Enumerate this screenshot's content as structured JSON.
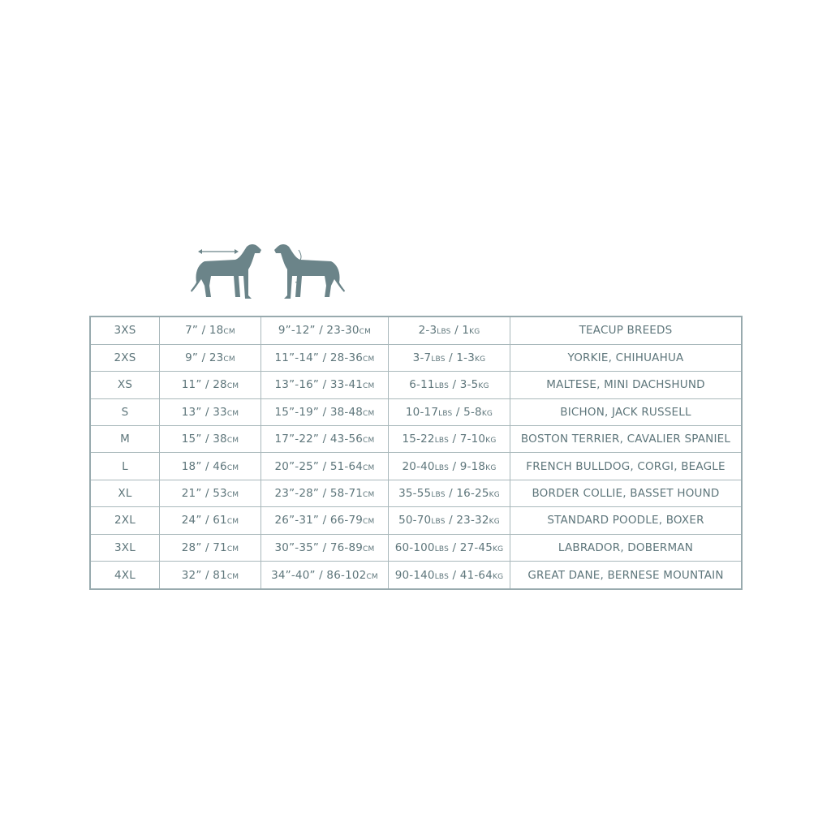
{
  "icons": [
    "dog-back-length-icon",
    "dog-neck-chest-girth-icon"
  ],
  "colors": {
    "text": "#5e767b",
    "border": "#a9b8bb",
    "icon": "#6b8489"
  },
  "table": {
    "rows": [
      [
        "3XS",
        "7” / 18cm",
        "9”-12” / 23-30cm",
        "2-3lbs / 1kg",
        "TEACUP BREEDS"
      ],
      [
        "2XS",
        "9” / 23cm",
        "11”-14” / 28-36cm",
        "3-7lbs / 1-3kg",
        "YORKIE, CHIHUAHUA"
      ],
      [
        "XS",
        "11” / 28cm",
        "13”-16” / 33-41cm",
        "6-11lbs / 3-5kg",
        "MALTESE, MINI DACHSHUND"
      ],
      [
        "S",
        "13” / 33cm",
        "15”-19” / 38-48cm",
        "10-17lbs / 5-8kg",
        "BICHON, JACK RUSSELL"
      ],
      [
        "M",
        "15” / 38cm",
        "17”-22” / 43-56cm",
        "15-22lbs / 7-10kg",
        "BOSTON TERRIER, CAVALIER SPANIEL"
      ],
      [
        "L",
        "18” / 46cm",
        "20”-25” / 51-64cm",
        "20-40lbs / 9-18kg",
        "FRENCH BULLDOG, CORGI, BEAGLE"
      ],
      [
        "XL",
        "21” / 53cm",
        "23”-28” / 58-71cm",
        "35-55lbs / 16-25kg",
        "BORDER COLLIE, BASSET HOUND"
      ],
      [
        "2XL",
        "24” / 61cm",
        "26”-31” / 66-79cm",
        "50-70lbs / 23-32kg",
        "STANDARD POODLE, BOXER"
      ],
      [
        "3XL",
        "28” / 71cm",
        "30”-35” / 76-89cm",
        "60-100lbs / 27-45kg",
        "LABRADOR, DOBERMAN"
      ],
      [
        "4XL",
        "32” / 81cm",
        "34”-40” / 86-102cm",
        "90-140lbs / 41-64kg",
        "GREAT DANE, BERNESE MOUNTAIN"
      ]
    ]
  }
}
